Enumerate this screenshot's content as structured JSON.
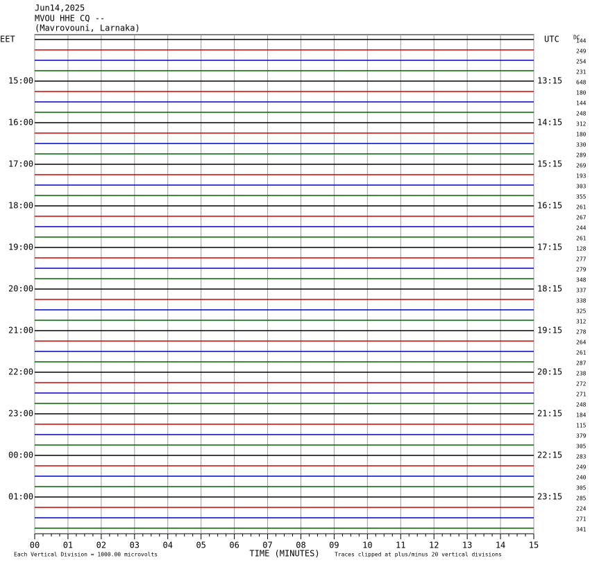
{
  "chart_data": {
    "type": "helicorder",
    "title": [
      "Jun14,2025",
      "MVOU HHE CQ --",
      "(Mavrovouni, Larnaka)"
    ],
    "left_labels": [
      "EET",
      "15:00",
      "16:00",
      "17:00",
      "18:00",
      "19:00",
      "20:00",
      "21:00",
      "22:00",
      "23:00",
      "00:00",
      "01:00"
    ],
    "right_labels": [
      "UTC",
      "13:15",
      "14:15",
      "15:15",
      "16:15",
      "17:15",
      "18:15",
      "19:15",
      "20:15",
      "21:15",
      "22:15",
      "23:15"
    ],
    "dc_header": "DC",
    "dc": [
      144,
      249,
      254,
      231,
      648,
      180,
      144,
      248,
      312,
      180,
      330,
      289,
      269,
      193,
      303,
      355,
      261,
      267,
      244,
      261,
      128,
      277,
      279,
      348,
      337,
      338,
      325,
      312,
      278,
      264,
      261,
      287,
      238,
      272,
      271,
      248,
      184,
      115,
      379,
      305,
      283,
      249,
      240,
      305,
      285,
      224,
      271,
      341
    ],
    "trace_colors": [
      "#000000",
      "#d00000",
      "#0000c8",
      "#006400"
    ],
    "xlim": [
      0,
      15
    ],
    "xticks": [
      {
        "value": 0,
        "label": "00"
      },
      {
        "value": 1,
        "label": "01"
      },
      {
        "value": 2,
        "label": "02"
      },
      {
        "value": 3,
        "label": "03"
      },
      {
        "value": 4,
        "label": "04"
      },
      {
        "value": 5,
        "label": "05"
      },
      {
        "value": 6,
        "label": "06"
      },
      {
        "value": 7,
        "label": "07"
      },
      {
        "value": 8,
        "label": "08"
      },
      {
        "value": 9,
        "label": "09"
      },
      {
        "value": 10,
        "label": "10"
      },
      {
        "value": 11,
        "label": "11"
      },
      {
        "value": 12,
        "label": "12"
      },
      {
        "value": 13,
        "label": "13"
      },
      {
        "value": 14,
        "label": "14"
      },
      {
        "value": 15,
        "label": "15"
      }
    ],
    "xlabel": "TIME (MINUTES)",
    "note_left": "Each Vertical Division = 1000.00 microvolts",
    "note_right": "Traces clipped at plus/minus 20 vertical divisions",
    "grid": true
  }
}
